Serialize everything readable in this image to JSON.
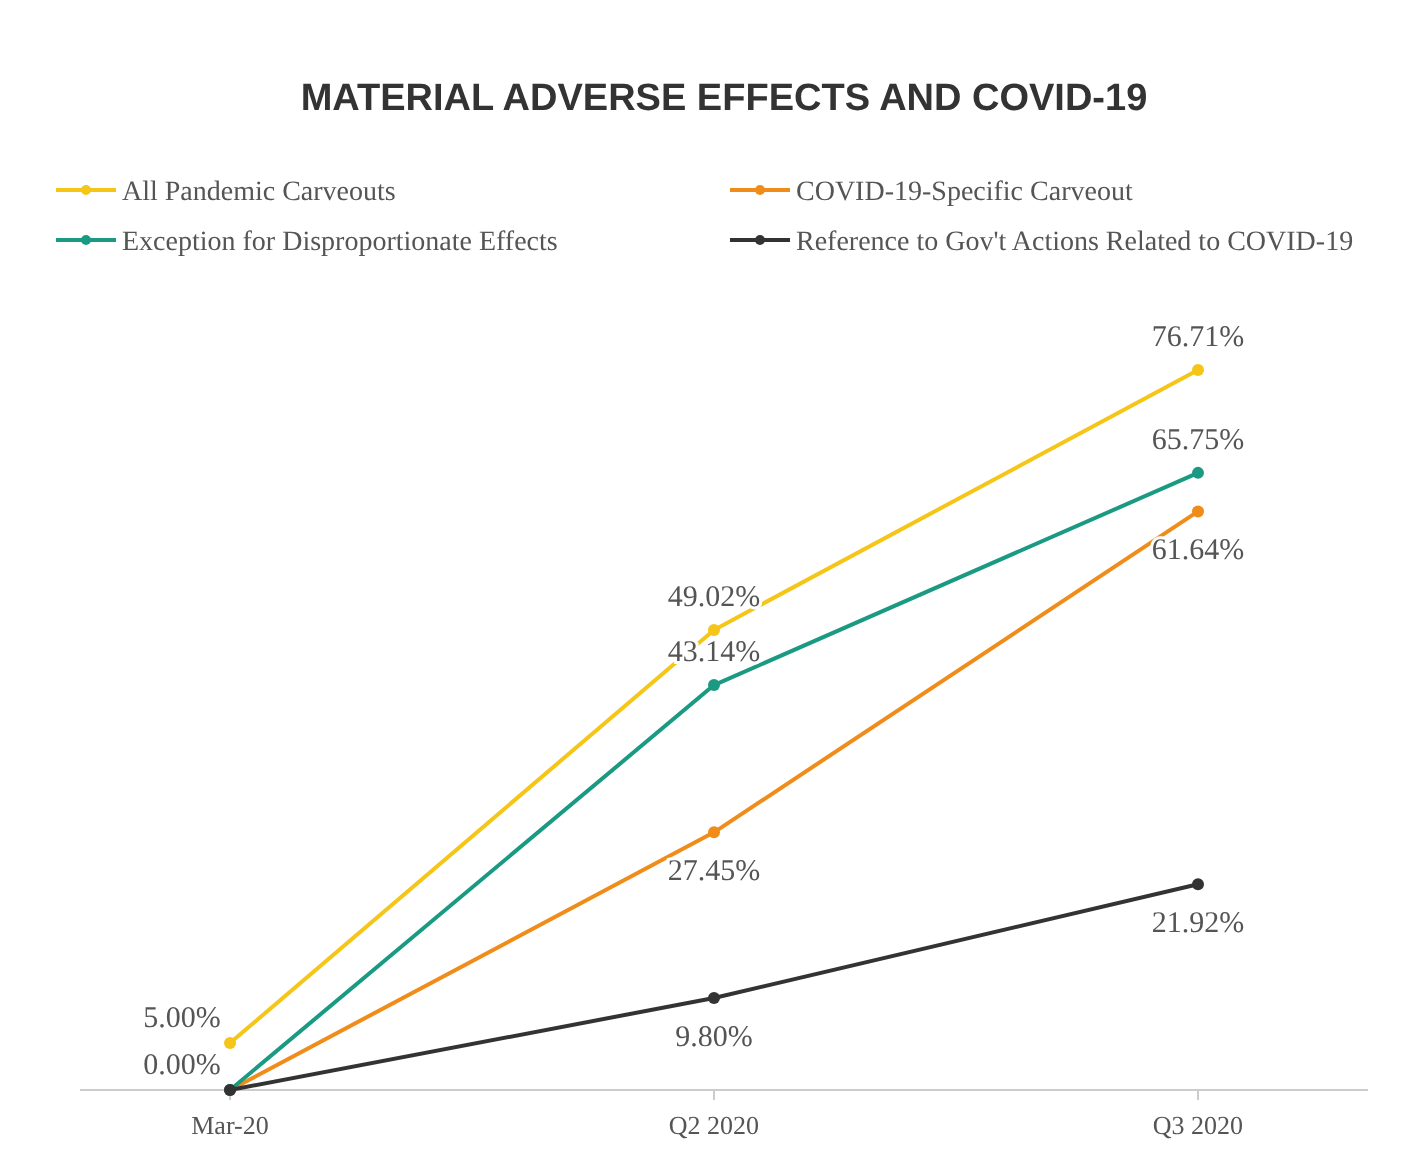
{
  "chart_data": {
    "type": "line",
    "title": "MATERIAL ADVERSE EFFECTS AND COVID-19",
    "categories": [
      "Mar-20",
      "Q2 2020",
      "Q3 2020"
    ],
    "legend": "top",
    "marker": "circle",
    "line_style": "solid",
    "series": [
      {
        "name": "All Pandemic Carveouts",
        "color": "#f5c518",
        "values": [
          5.0,
          49.02,
          76.71
        ],
        "value_labels": [
          "5.00%",
          "49.02%",
          "76.71%"
        ]
      },
      {
        "name": "COVID-19-Specific Carveout",
        "color": "#f08c1a",
        "values": [
          0,
          27.45,
          61.64
        ],
        "value_labels": [
          null,
          "27.45%",
          "61.64%"
        ]
      },
      {
        "name": "Exception for Disproportionate Effects",
        "color": "#1a9a82",
        "values": [
          0,
          43.14,
          65.75
        ],
        "value_labels": [
          null,
          "43.14%",
          "65.75%"
        ]
      },
      {
        "name": "Reference to Gov't Actions Related to COVID-19",
        "color": "#333333",
        "values": [
          0,
          9.8,
          21.92
        ],
        "value_labels": [
          "0.00%",
          "9.80%",
          "21.92%"
        ]
      }
    ]
  }
}
